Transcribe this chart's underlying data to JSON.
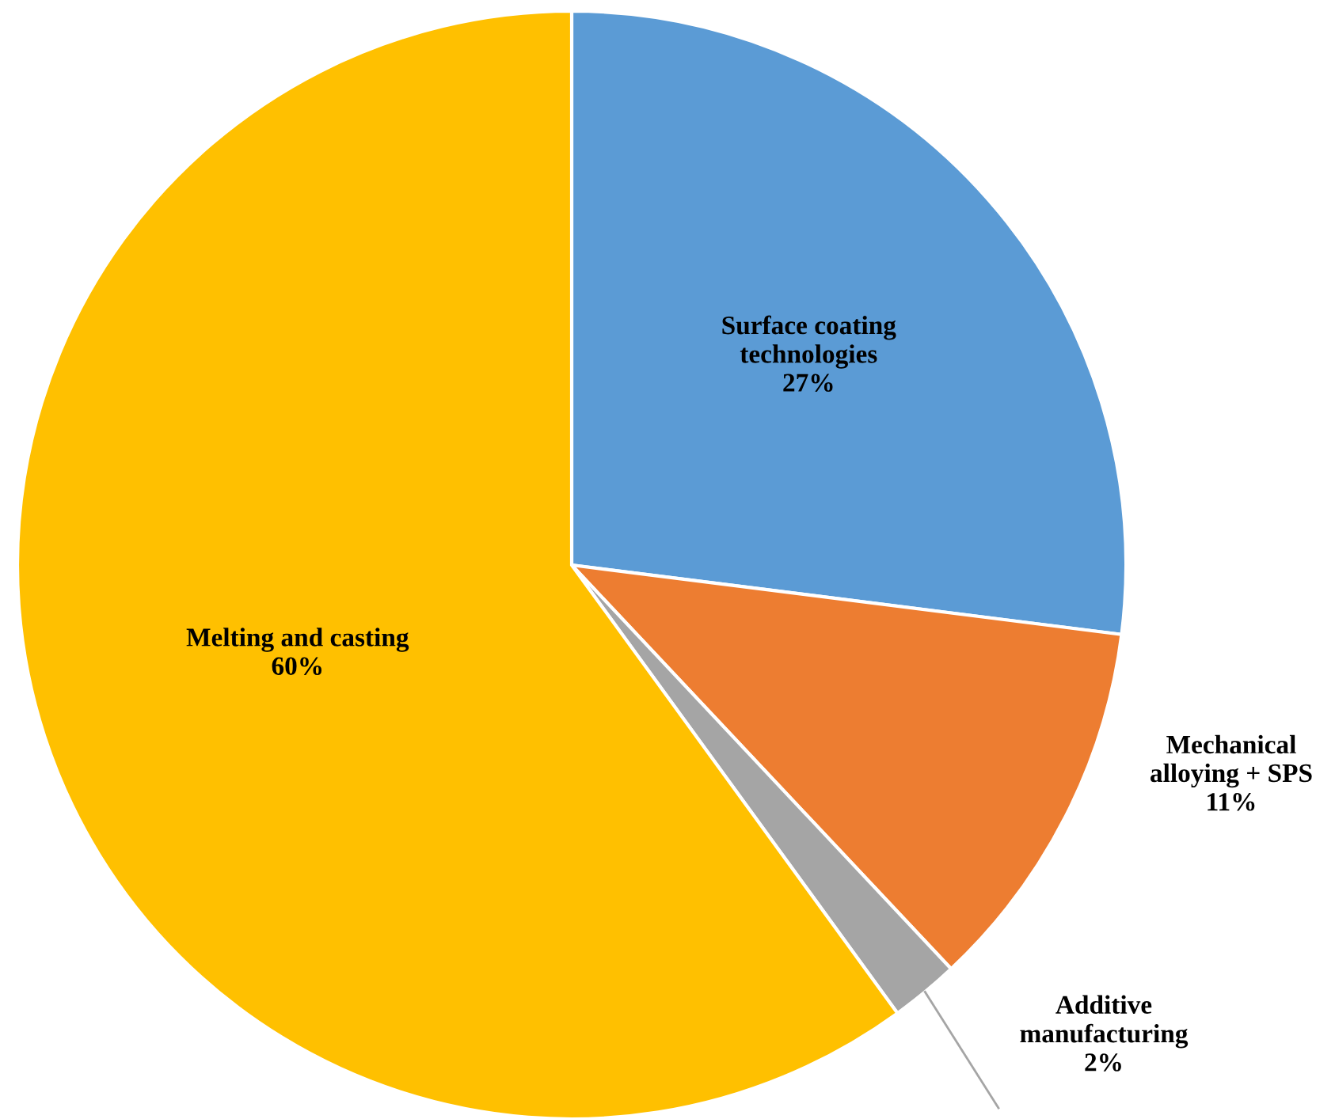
{
  "chart_data": {
    "type": "pie",
    "categories": [
      "Surface coating\ntechnologies",
      "Mechanical\nalloying + SPS",
      "Additive\nmanufacturing",
      "Melting and casting"
    ],
    "values": [
      27,
      11,
      2,
      60
    ],
    "value_labels": [
      "27%",
      "11%",
      "2%",
      "60%"
    ],
    "colors": [
      "#5b9bd5",
      "#ed7d31",
      "#a5a5a5",
      "#ffc000"
    ]
  }
}
